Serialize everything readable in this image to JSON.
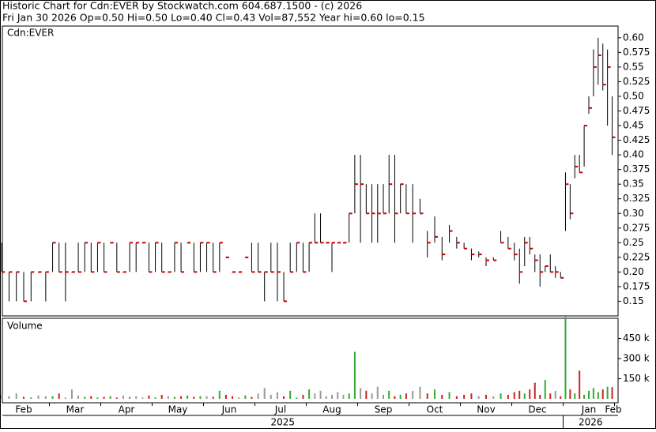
{
  "header": {
    "title": "Historic Chart for Cdn:EVER by Stockwatch.com 604.687.1500 - (c) 2026",
    "summary": "Fri Jan 30 2026  Op=0.50  Hi=0.50  Lo=0.40  Cl=0.43  Vol=87,552  Year hi=0.60  lo=0.15"
  },
  "chart_data": {
    "type": "ohlc",
    "symbol_label": "Cdn:EVER",
    "volume_label": "Volume",
    "bar_color": "#000000",
    "close_color": "#cc0000",
    "up_color": "#33aa33",
    "down_color": "#cc2222",
    "flat_color": "#999999",
    "xticks": [
      {
        "value": "2025-02",
        "label": "Feb"
      },
      {
        "value": "2025-03",
        "label": "Mar"
      },
      {
        "value": "2025-04",
        "label": "Apr"
      },
      {
        "value": "2025-05",
        "label": "May"
      },
      {
        "value": "2025-06",
        "label": "Jun"
      },
      {
        "value": "2025-07",
        "label": "Jul"
      },
      {
        "value": "2025-08",
        "label": "Aug"
      },
      {
        "value": "2025-09",
        "label": "Sep"
      },
      {
        "value": "2025-10",
        "label": "Oct"
      },
      {
        "value": "2025-11",
        "label": "Nov"
      },
      {
        "value": "2025-12",
        "label": "Dec"
      },
      {
        "value": "2026-01",
        "label": "Jan"
      },
      {
        "value": "2026-02",
        "label": "Feb"
      }
    ],
    "years": [
      {
        "value": "2025",
        "label": "2025"
      },
      {
        "value": "2026",
        "label": "2026"
      }
    ],
    "ylim": [
      0.125,
      0.62
    ],
    "yticks": [
      {
        "value": 0.6,
        "label": "0.60"
      },
      0.575,
      0.55,
      0.525,
      {
        "value": 0.5,
        "label": "0.50"
      },
      0.475,
      0.45,
      0.425,
      {
        "value": 0.4,
        "label": "0.40"
      },
      0.375,
      0.35,
      0.325,
      {
        "value": 0.3,
        "label": "0.30"
      },
      0.275,
      0.25,
      0.225,
      {
        "value": 0.2,
        "label": "0.20"
      },
      0.175,
      0.15
    ],
    "y2lim": [
      0,
      600000
    ],
    "y2ticks": [
      {
        "value": 450000,
        "label": "450 k"
      },
      {
        "value": 300000,
        "label": "300 k"
      },
      {
        "value": 150000,
        "label": "150 k"
      }
    ],
    "x": [
      "2025-02",
      "2025-02",
      "2025-02",
      "2025-02",
      "2025-02",
      "2025-02",
      "2025-02",
      "2025-03",
      "2025-03",
      "2025-03",
      "2025-03",
      "2025-03",
      "2025-03",
      "2025-03",
      "2025-03",
      "2025-04",
      "2025-04",
      "2025-04",
      "2025-04",
      "2025-04",
      "2025-04",
      "2025-04",
      "2025-04",
      "2025-05",
      "2025-05",
      "2025-05",
      "2025-05",
      "2025-05",
      "2025-05",
      "2025-05",
      "2025-05",
      "2025-06",
      "2025-06",
      "2025-06",
      "2025-06",
      "2025-06",
      "2025-06",
      "2025-06",
      "2025-06",
      "2025-07",
      "2025-07",
      "2025-07",
      "2025-07",
      "2025-07",
      "2025-07",
      "2025-07",
      "2025-07",
      "2025-08",
      "2025-08",
      "2025-08",
      "2025-08",
      "2025-08",
      "2025-08",
      "2025-08",
      "2025-08",
      "2025-08",
      "2025-09",
      "2025-09",
      "2025-09",
      "2025-09",
      "2025-09",
      "2025-09",
      "2025-09",
      "2025-09",
      "2025-09",
      "2025-10",
      "2025-10",
      "2025-10",
      "2025-10",
      "2025-10",
      "2025-10",
      "2025-10",
      "2025-11",
      "2025-11",
      "2025-11",
      "2025-11",
      "2025-11",
      "2025-11",
      "2025-11",
      "2025-12",
      "2025-12",
      "2025-12",
      "2025-12",
      "2025-12",
      "2025-12",
      "2025-12",
      "2025-12",
      "2025-12",
      "2025-12",
      "2026-01",
      "2026-01",
      "2026-01",
      "2026-01",
      "2026-01",
      "2026-01",
      "2026-01",
      "2026-01",
      "2026-01",
      "2026-01",
      "2026-01"
    ],
    "high": [
      0.25,
      0.2,
      0.2,
      0.2,
      0.2,
      0.2,
      0.2,
      0.25,
      0.25,
      0.25,
      0.2,
      0.25,
      0.25,
      0.25,
      0.25,
      0.25,
      0.25,
      0.25,
      0.2,
      0.25,
      0.25,
      0.25,
      0.25,
      0.25,
      0.25,
      0.2,
      0.25,
      0.25,
      0.25,
      0.25,
      0.25,
      0.25,
      0.25,
      0.25,
      0.225,
      0.2,
      0.2,
      0.225,
      0.25,
      0.25,
      0.2,
      0.25,
      0.25,
      0.2,
      0.25,
      0.25,
      0.25,
      0.25,
      0.3,
      0.3,
      0.25,
      0.25,
      0.25,
      0.25,
      0.3,
      0.4,
      0.4,
      0.35,
      0.35,
      0.35,
      0.35,
      0.4,
      0.4,
      0.35,
      0.35,
      0.35,
      0.325,
      0.27,
      0.295,
      0.26,
      0.28,
      0.26,
      0.25,
      0.24,
      0.235,
      0.225,
      0.225,
      0.27,
      0.26,
      0.25,
      0.24,
      0.26,
      0.26,
      0.23,
      0.23,
      0.21,
      0.23,
      0.21,
      0.2,
      0.37,
      0.35,
      0.4,
      0.4,
      0.45,
      0.5,
      0.58,
      0.6,
      0.59,
      0.58,
      0.5
    ],
    "low": [
      0.2,
      0.15,
      0.15,
      0.15,
      0.15,
      0.2,
      0.15,
      0.2,
      0.2,
      0.15,
      0.2,
      0.2,
      0.2,
      0.2,
      0.2,
      0.2,
      0.25,
      0.2,
      0.2,
      0.2,
      0.2,
      0.25,
      0.2,
      0.2,
      0.2,
      0.2,
      0.2,
      0.2,
      0.25,
      0.2,
      0.2,
      0.2,
      0.2,
      0.2,
      0.225,
      0.2,
      0.2,
      0.225,
      0.2,
      0.2,
      0.15,
      0.2,
      0.15,
      0.15,
      0.2,
      0.2,
      0.2,
      0.2,
      0.25,
      0.25,
      0.25,
      0.2,
      0.25,
      0.25,
      0.25,
      0.3,
      0.25,
      0.3,
      0.25,
      0.25,
      0.3,
      0.3,
      0.25,
      0.3,
      0.3,
      0.25,
      0.3,
      0.225,
      0.25,
      0.22,
      0.25,
      0.24,
      0.24,
      0.22,
      0.225,
      0.21,
      0.22,
      0.25,
      0.24,
      0.22,
      0.18,
      0.21,
      0.23,
      0.2,
      0.175,
      0.2,
      0.2,
      0.19,
      0.19,
      0.27,
      0.29,
      0.36,
      0.37,
      0.38,
      0.47,
      0.5,
      0.52,
      0.51,
      0.45,
      0.4
    ],
    "close": [
      0.2,
      0.2,
      0.2,
      0.15,
      0.2,
      0.2,
      0.2,
      0.25,
      0.2,
      0.2,
      0.2,
      0.2,
      0.25,
      0.2,
      0.25,
      0.2,
      0.25,
      0.2,
      0.2,
      0.25,
      0.25,
      0.25,
      0.2,
      0.25,
      0.2,
      0.2,
      0.25,
      0.2,
      0.25,
      0.2,
      0.25,
      0.25,
      0.2,
      0.25,
      0.225,
      0.2,
      0.2,
      0.225,
      0.2,
      0.2,
      0.2,
      0.2,
      0.2,
      0.15,
      0.2,
      0.25,
      0.2,
      0.25,
      0.25,
      0.25,
      0.25,
      0.25,
      0.25,
      0.25,
      0.3,
      0.35,
      0.35,
      0.3,
      0.3,
      0.3,
      0.3,
      0.35,
      0.3,
      0.35,
      0.3,
      0.3,
      0.3,
      0.25,
      0.26,
      0.23,
      0.27,
      0.25,
      0.24,
      0.23,
      0.23,
      0.22,
      0.22,
      0.25,
      0.24,
      0.23,
      0.2,
      0.25,
      0.24,
      0.22,
      0.2,
      0.21,
      0.2,
      0.2,
      0.19,
      0.35,
      0.3,
      0.38,
      0.37,
      0.45,
      0.48,
      0.55,
      0.57,
      0.52,
      0.55,
      0.43
    ],
    "volume": [
      30000,
      20000,
      40000,
      15000,
      10000,
      25000,
      20000,
      20000,
      40000,
      10000,
      70000,
      25000,
      15000,
      20000,
      10000,
      15000,
      20000,
      10000,
      25000,
      15000,
      20000,
      10000,
      25000,
      10000,
      30000,
      20000,
      15000,
      20000,
      25000,
      15000,
      20000,
      20000,
      15000,
      60000,
      30000,
      20000,
      10000,
      25000,
      15000,
      40000,
      80000,
      30000,
      50000,
      20000,
      60000,
      10000,
      30000,
      70000,
      40000,
      60000,
      20000,
      30000,
      50000,
      30000,
      40000,
      350000,
      80000,
      60000,
      40000,
      90000,
      30000,
      60000,
      20000,
      30000,
      40000,
      60000,
      90000,
      40000,
      70000,
      30000,
      50000,
      20000,
      30000,
      40000,
      20000,
      30000,
      20000,
      40000,
      30000,
      50000,
      60000,
      40000,
      70000,
      120000,
      30000,
      140000,
      40000,
      60000,
      20000,
      610000,
      70000,
      40000,
      210000,
      30000,
      60000,
      80000,
      50000,
      70000,
      90000,
      87552
    ]
  }
}
